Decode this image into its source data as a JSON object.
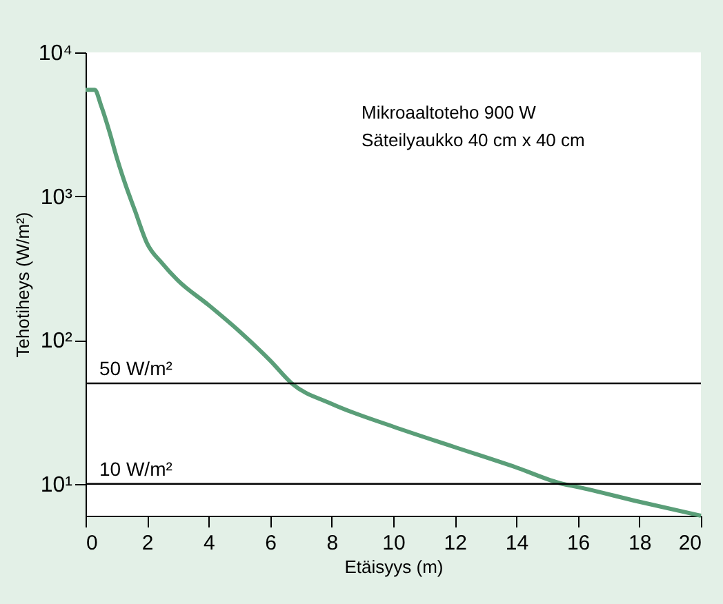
{
  "chart_data": {
    "type": "line",
    "xlabel": "Etäisyys (m)",
    "ylabel": "Tehotiheys (W/m²)",
    "x": [
      0,
      0.3,
      0.5,
      0.8,
      1,
      1.3,
      1.6,
      2,
      2.5,
      3,
      4,
      5,
      6,
      6.7,
      8,
      10,
      12,
      14,
      15.5,
      16,
      18,
      20
    ],
    "series": [
      {
        "color": "#5a9e78",
        "values": [
          5500,
          5500,
          4300,
          2700,
          1900,
          1200,
          800,
          470,
          340,
          260,
          175,
          115,
          72,
          50,
          36,
          25,
          18,
          13,
          10,
          9.5,
          7.5,
          6
        ]
      }
    ],
    "log": "y",
    "xlim": [
      0,
      20
    ],
    "xticks": [
      0,
      2,
      4,
      6,
      8,
      10,
      12,
      14,
      16,
      18,
      20
    ],
    "ylim": [
      6,
      10000
    ],
    "yticks": [
      {
        "value": 10,
        "label": "10¹"
      },
      {
        "value": 100,
        "label": "10²"
      },
      {
        "value": 1000,
        "label": "10³"
      },
      {
        "value": 10000,
        "label": "10⁴"
      }
    ],
    "ref_lines": [
      {
        "axis": "y",
        "value": 50,
        "label": "50 W/m²",
        "color": "#000000"
      },
      {
        "axis": "y",
        "value": 10,
        "label": "10 W/m²",
        "color": "#000000"
      }
    ],
    "annotations": [
      "Mikroaaltoteho 900 W",
      "Säteilyaukko 40 cm x 40 cm"
    ],
    "grid": false,
    "marker": "none",
    "line_style": "solid"
  }
}
